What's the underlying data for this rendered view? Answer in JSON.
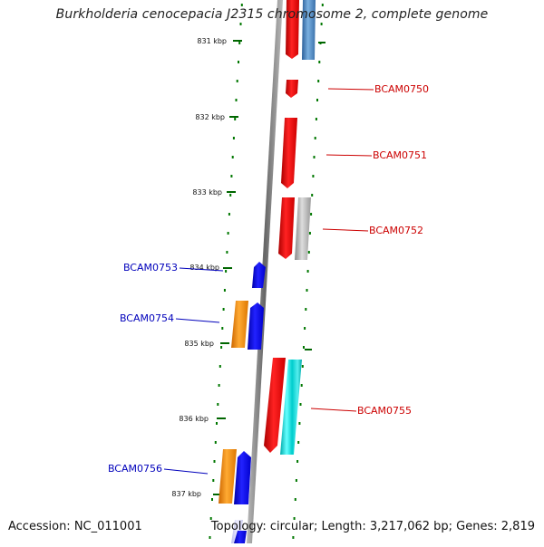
{
  "header": {
    "title": "Burkholderia cenocepacia J2315 chromosome 2, complete genome"
  },
  "footer": {
    "accession": "Accession: NC_011001",
    "summary": "Topology: circular; Length: 3,217,062 bp; Genes: 2,819"
  },
  "ruler": {
    "ticks": [
      "831 kbp",
      "832 kbp",
      "833 kbp",
      "834 kbp",
      "835 kbp",
      "836 kbp",
      "837 kbp"
    ]
  },
  "genes": {
    "right": [
      "BCAM0750",
      "BCAM0751",
      "BCAM0752",
      "BCAM0755"
    ],
    "left": [
      "BCAM0753",
      "BCAM0754",
      "BCAM0756"
    ]
  },
  "colors": {
    "forward_label": "#cc0000",
    "reverse_label": "#0000bb",
    "red_gene": "#ee0000",
    "blue_gene": "#0000ee",
    "orange_gene": "#ee8800",
    "cyan_gene": "#00dddd",
    "steel_gene": "#4a86c0",
    "gray_gene": "#aaaaaa",
    "track_dots": "#007700",
    "backbone": "#888888"
  }
}
